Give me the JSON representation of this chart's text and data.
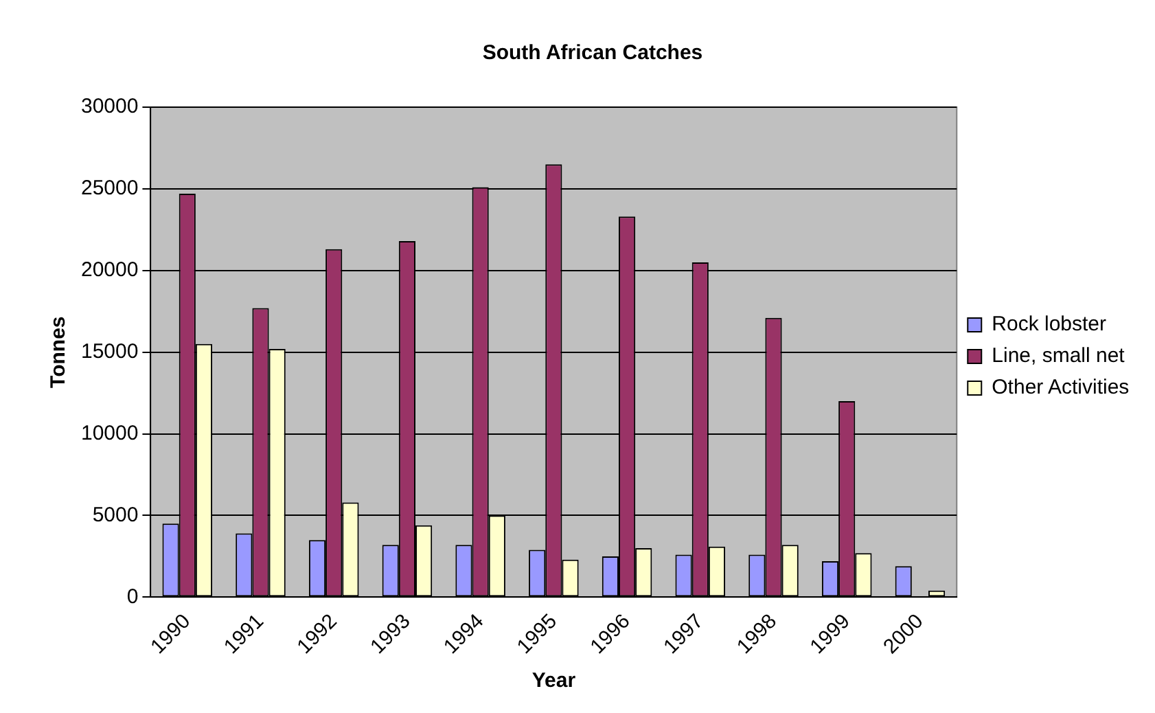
{
  "chart_data": {
    "type": "bar",
    "title": "South African Catches",
    "xlabel": "Year",
    "ylabel": "Tonnes",
    "categories": [
      "1990",
      "1991",
      "1992",
      "1993",
      "1994",
      "1995",
      "1996",
      "1997",
      "1998",
      "1999",
      "2000"
    ],
    "series": [
      {
        "name": "Rock lobster",
        "color": "#9999ff",
        "values": [
          4500,
          3900,
          3500,
          3200,
          3200,
          2900,
          2500,
          2600,
          2600,
          2200,
          1900
        ]
      },
      {
        "name": "Line, small net",
        "color": "#993366",
        "values": [
          24700,
          17700,
          21300,
          21800,
          25100,
          26500,
          23300,
          20500,
          17100,
          12000,
          null
        ]
      },
      {
        "name": "Other Activities",
        "color": "#ffffcc",
        "values": [
          15500,
          15200,
          5800,
          4400,
          5000,
          2300,
          3000,
          3100,
          3200,
          2700,
          400
        ]
      }
    ],
    "ylim": [
      0,
      30000
    ],
    "yticks": [
      0,
      5000,
      10000,
      15000,
      20000,
      25000,
      30000
    ],
    "grid": "y",
    "legend": "right"
  }
}
